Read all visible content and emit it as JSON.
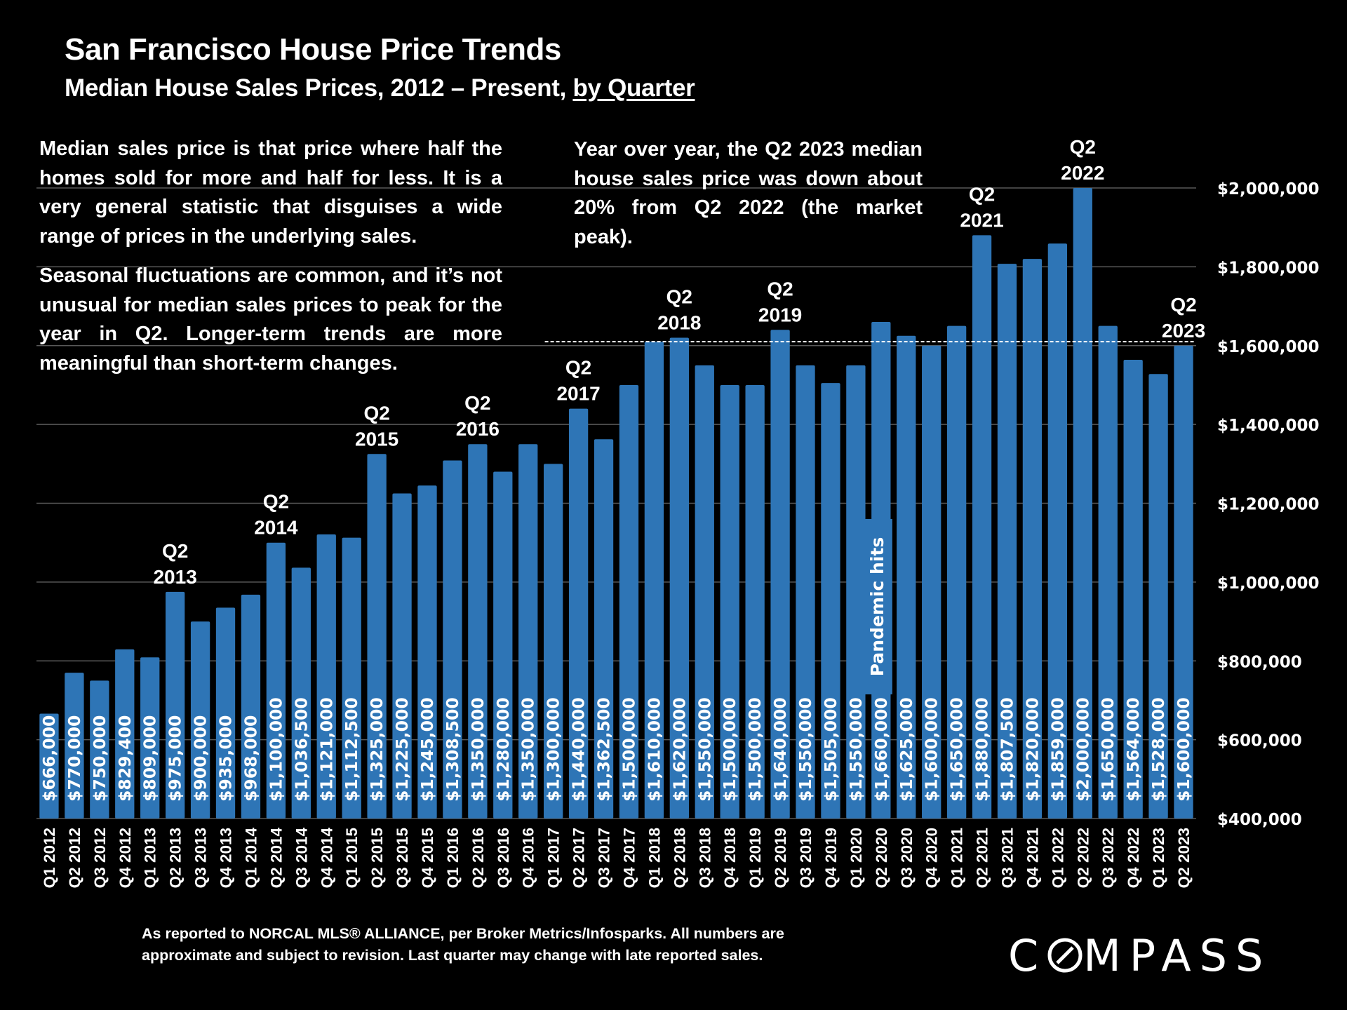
{
  "header": {
    "title": "San Francisco House Price Trends",
    "subtitle_main": "Median House Sales Prices, 2012 – Present, ",
    "subtitle_link": "by Quarter"
  },
  "notes": {
    "definition": "Median sales price is that price where half the homes sold for more and half for less. It is a very general statistic that disguises a wide range of prices in the underlying sales.",
    "seasonal": "Seasonal fluctuations are common, and it’s not unusual for median sales prices to peak for the year in Q2. Longer-term trends are more meaningful than short-term changes.",
    "yoy": "Year over year, the Q2 2023 median house sales price was down about 20% from Q2 2022 (the market peak)."
  },
  "footer": {
    "source_line1": "As reported to NORCAL MLS® ALLIANCE, per Broker Metrics/Infosparks. All numbers are",
    "source_line2": "approximate and subject to revision. Last quarter may change with late reported sales.",
    "logo_text_left": "C",
    "logo_text_right": "MPASS"
  },
  "colors": {
    "background": "#000000",
    "bar": "#2E75B6",
    "text": "#FFFFFF",
    "gridline": "#595959"
  },
  "chart_data": {
    "type": "bar",
    "title": "San Francisco House Price Trends",
    "subtitle": "Median House Sales Prices, 2012 – Present, by Quarter",
    "xlabel": "",
    "ylabel": "",
    "ylim": [
      400000,
      2000000
    ],
    "y_ticks": [
      400000,
      600000,
      800000,
      1000000,
      1200000,
      1400000,
      1600000,
      1800000,
      2000000
    ],
    "y_tick_labels": [
      "$400,000",
      "$600,000",
      "$800,000",
      "$1,000,000",
      "$1,200,000",
      "$1,400,000",
      "$1,600,000",
      "$1,800,000",
      "$2,000,000"
    ],
    "y_axis_position": "right",
    "grid": true,
    "categories": [
      "Q1 2012",
      "Q2 2012",
      "Q3 2012",
      "Q4 2012",
      "Q1 2013",
      "Q2 2013",
      "Q3 2013",
      "Q4 2013",
      "Q1 2014",
      "Q2 2014",
      "Q3 2014",
      "Q4 2014",
      "Q1 2015",
      "Q2 2015",
      "Q3 2015",
      "Q4 2015",
      "Q1 2016",
      "Q2 2016",
      "Q3 2016",
      "Q4 2016",
      "Q1 2017",
      "Q2 2017",
      "Q3 2017",
      "Q4 2017",
      "Q1 2018",
      "Q2 2018",
      "Q3 2018",
      "Q4 2018",
      "Q1 2019",
      "Q2 2019",
      "Q3 2019",
      "Q4 2019",
      "Q1 2020",
      "Q2 2020",
      "Q3 2020",
      "Q4 2020",
      "Q1 2021",
      "Q2 2021",
      "Q3 2021",
      "Q4 2021",
      "Q1 2022",
      "Q2 2022",
      "Q3 2022",
      "Q4 2022",
      "Q1 2023",
      "Q2 2023"
    ],
    "values": [
      666000,
      770000,
      750000,
      829400,
      809000,
      975000,
      900000,
      935000,
      968000,
      1100000,
      1036500,
      1121000,
      1112500,
      1325000,
      1225000,
      1245000,
      1308500,
      1350000,
      1280000,
      1350000,
      1300000,
      1440000,
      1362500,
      1500000,
      1610000,
      1620000,
      1550000,
      1500000,
      1500000,
      1640000,
      1550000,
      1505000,
      1550000,
      1660000,
      1625000,
      1600000,
      1650000,
      1880000,
      1807500,
      1820000,
      1859000,
      2000000,
      1650000,
      1564000,
      1528000,
      1600000
    ],
    "data_labels": [
      "$666,000",
      "$770,000",
      "$750,000",
      "$829,400",
      "$809,000",
      "$975,000",
      "$900,000",
      "$935,000",
      "$968,000",
      "$1,100,000",
      "$1,036,500",
      "$1,121,000",
      "$1,112,500",
      "$1,325,000",
      "$1,225,000",
      "$1,245,000",
      "$1,308,500",
      "$1,350,000",
      "$1,280,000",
      "$1,350,000",
      "$1,300,000",
      "$1,440,000",
      "$1,362,500",
      "$1,500,000",
      "$1,610,000",
      "$1,620,000",
      "$1,550,000",
      "$1,500,000",
      "$1,500,000",
      "$1,640,000",
      "$1,550,000",
      "$1,505,000",
      "$1,550,000",
      "$1,660,000",
      "$1,625,000",
      "$1,600,000",
      "$1,650,000",
      "$1,880,000",
      "$1,807,500",
      "$1,820,000",
      "$1,859,000",
      "$2,000,000",
      "$1,650,000",
      "$1,564,000",
      "$1,528,000",
      "$1,600,000"
    ],
    "annotations": [
      {
        "category": "Q2 2013",
        "line1": "Q2",
        "line2": "2013"
      },
      {
        "category": "Q2 2014",
        "line1": "Q2",
        "line2": "2014"
      },
      {
        "category": "Q2 2015",
        "line1": "Q2",
        "line2": "2015"
      },
      {
        "category": "Q2 2016",
        "line1": "Q2",
        "line2": "2016"
      },
      {
        "category": "Q2 2017",
        "line1": "Q2",
        "line2": "2017"
      },
      {
        "category": "Q2 2018",
        "line1": "Q2",
        "line2": "2018"
      },
      {
        "category": "Q2 2019",
        "line1": "Q2",
        "line2": "2019"
      },
      {
        "category": "Q2 2021",
        "line1": "Q2",
        "line2": "2021"
      },
      {
        "category": "Q2 2022",
        "line1": "Q2",
        "line2": "2022"
      },
      {
        "category": "Q2 2023",
        "line1": "Q2",
        "line2": "2023"
      }
    ],
    "reference_line": {
      "value": 1610000,
      "style": "dashed",
      "from_category": "Q2 2017",
      "to_category": "Q2 2023"
    },
    "event_marker": {
      "label": "Pandemic hits",
      "between": [
        "Q1 2020",
        "Q2 2020"
      ]
    }
  }
}
